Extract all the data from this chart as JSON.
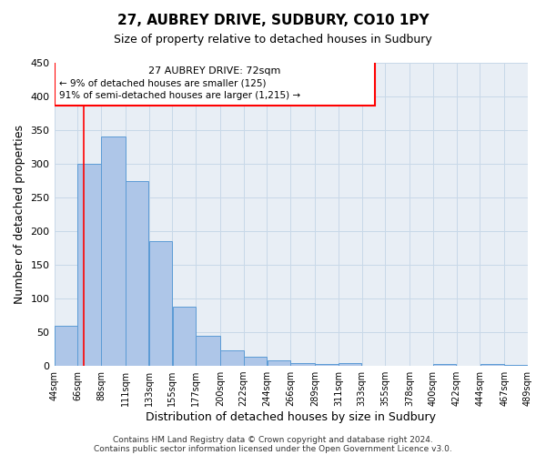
{
  "title": "27, AUBREY DRIVE, SUDBURY, CO10 1PY",
  "subtitle": "Size of property relative to detached houses in Sudbury",
  "xlabel": "Distribution of detached houses by size in Sudbury",
  "ylabel": "Number of detached properties",
  "bar_left_edges": [
    44,
    66,
    88,
    111,
    133,
    155,
    177,
    200,
    222,
    244,
    266,
    289,
    311,
    333,
    355,
    378,
    400,
    422,
    444,
    467
  ],
  "bar_widths": [
    22,
    22,
    23,
    22,
    22,
    22,
    23,
    22,
    22,
    22,
    23,
    22,
    22,
    22,
    23,
    22,
    22,
    22,
    23,
    22
  ],
  "bar_heights": [
    60,
    300,
    340,
    275,
    185,
    88,
    45,
    23,
    14,
    8,
    4,
    3,
    4,
    0,
    0,
    0,
    3,
    0,
    3,
    2
  ],
  "bar_color": "#aec6e8",
  "bar_edge_color": "#5b9bd5",
  "tick_labels": [
    "44sqm",
    "66sqm",
    "88sqm",
    "111sqm",
    "133sqm",
    "155sqm",
    "177sqm",
    "200sqm",
    "222sqm",
    "244sqm",
    "266sqm",
    "289sqm",
    "311sqm",
    "333sqm",
    "355sqm",
    "378sqm",
    "400sqm",
    "422sqm",
    "444sqm",
    "467sqm",
    "489sqm"
  ],
  "tick_positions": [
    44,
    66,
    88,
    111,
    133,
    155,
    177,
    200,
    222,
    244,
    266,
    289,
    311,
    333,
    355,
    378,
    400,
    422,
    444,
    467,
    489
  ],
  "ylim": [
    0,
    450
  ],
  "yticks": [
    0,
    50,
    100,
    150,
    200,
    250,
    300,
    350,
    400,
    450
  ],
  "xlim": [
    44,
    489
  ],
  "red_line_x": 72,
  "annotation_title": "27 AUBREY DRIVE: 72sqm",
  "annotation_line1": "← 9% of detached houses are smaller (125)",
  "annotation_line2": "91% of semi-detached houses are larger (1,215) →",
  "grid_color": "#c8d8e8",
  "background_color": "#e8eef5",
  "footer1": "Contains HM Land Registry data © Crown copyright and database right 2024.",
  "footer2": "Contains public sector information licensed under the Open Government Licence v3.0."
}
